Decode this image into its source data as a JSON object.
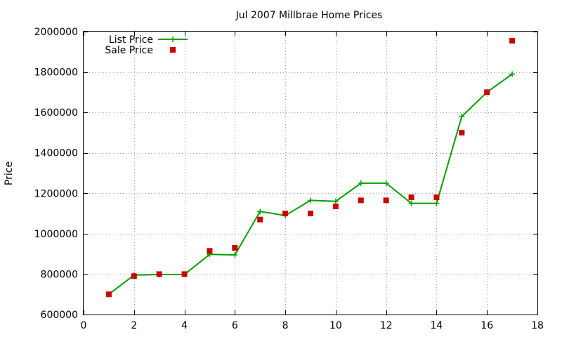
{
  "chart_data": {
    "type": "line",
    "title": "Jul 2007 Millbrae Home Prices",
    "xlabel": "",
    "ylabel": "Price",
    "xlim": [
      0,
      18
    ],
    "ylim": [
      600000,
      2000000
    ],
    "xticks": [
      0,
      2,
      4,
      6,
      8,
      10,
      12,
      14,
      16,
      18
    ],
    "yticks": [
      600000,
      800000,
      1000000,
      1200000,
      1400000,
      1600000,
      1800000,
      2000000
    ],
    "grid": true,
    "legend_position": "top-left",
    "series": [
      {
        "name": "List Price",
        "style": "line-with-plus-markers",
        "color": "#00a000",
        "x": [
          1,
          2,
          3,
          4,
          5,
          6,
          7,
          8,
          9,
          10,
          11,
          12,
          13,
          14,
          15,
          16,
          17
        ],
        "values": [
          700000,
          795000,
          798000,
          798000,
          898000,
          895000,
          1110000,
          1090000,
          1165000,
          1160000,
          1250000,
          1250000,
          1150000,
          1150000,
          1580000,
          1700000,
          1790000
        ]
      },
      {
        "name": "Sale Price",
        "style": "square-markers",
        "color": "#cc0000",
        "x": [
          1,
          2,
          3,
          4,
          5,
          6,
          7,
          8,
          9,
          10,
          11,
          12,
          13,
          14,
          15,
          16,
          17
        ],
        "values": [
          700000,
          790000,
          800000,
          800000,
          915000,
          930000,
          1070000,
          1100000,
          1100000,
          1135000,
          1165000,
          1165000,
          1180000,
          1180000,
          1500000,
          1700000,
          1955000
        ]
      }
    ]
  }
}
